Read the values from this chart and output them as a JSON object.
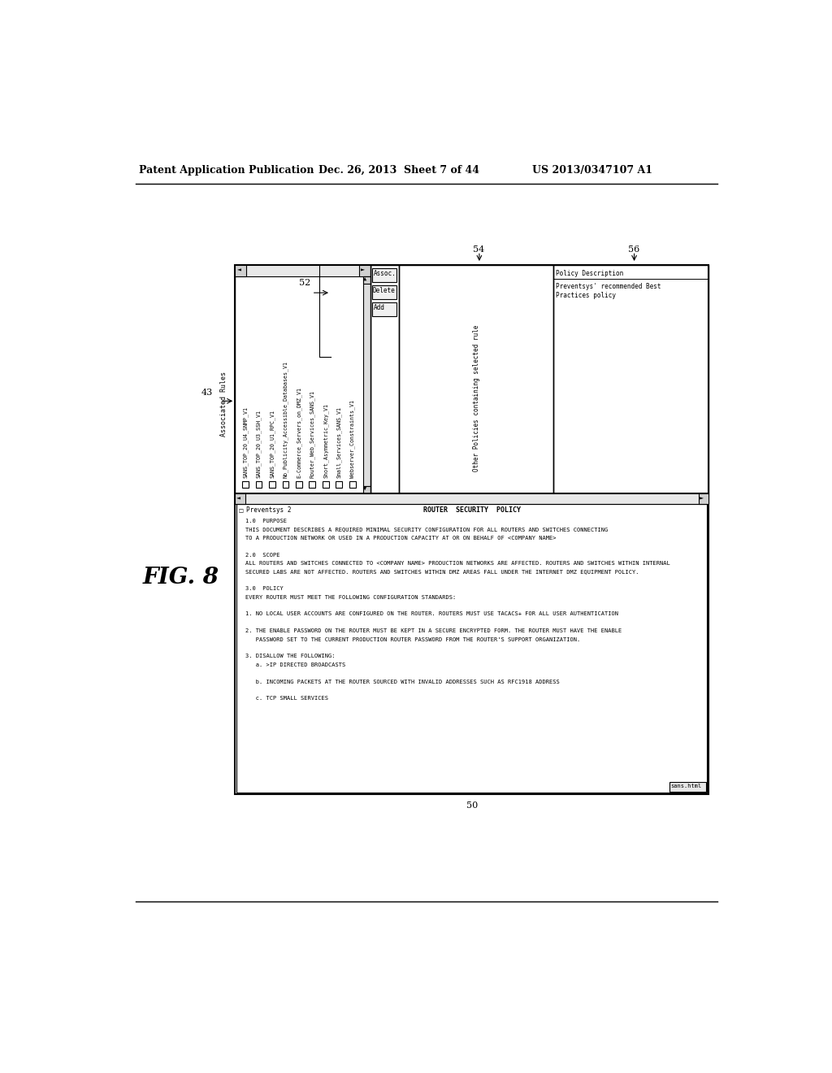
{
  "bg_color": "#ffffff",
  "header_left": "Patent Application Publication",
  "header_mid": "Dec. 26, 2013  Sheet 7 of 44",
  "header_right": "US 2013/0347107 A1",
  "fig_label": "FIG. 8",
  "label_52": "52",
  "label_43": "43",
  "label_50": "50",
  "label_54": "54",
  "label_56": "56",
  "associated_rules_label": "Associated Rules",
  "rules_list": [
    "SANS_TOP_20_U4_SNMP_V1",
    "SANS_TOP_20_U3_SSH_V1",
    "SANS_TOP_20_U1_RPC_V1",
    "No_Publicity_Accessible_Databases_V1",
    "E-Commerce_Servers_on_DMZ_V1",
    "Router_Web_Services_SANS_V1",
    "Short_Asymmetric_Key_V1",
    "Small_Services_SANS_V1",
    "Webserver_Constraints_V1"
  ],
  "buttons": [
    "Add",
    "Delete",
    "Assoc."
  ],
  "other_policies_label": "Other Policies containing selected rule",
  "policy_desc_label": "Policy Description",
  "policy_desc_text1": "Preventsys' recommended Best",
  "policy_desc_text2": "Practices policy",
  "preventsys_label": "Preventsys 2",
  "content_title": "ROUTER  SECURITY  POLICY",
  "content_lines": [
    "1.0  PURPOSE",
    "THIS DOCUMENT DESCRIBES A REQUIRED MINIMAL SECURITY CONFIGURATION FOR ALL ROUTERS AND SWITCHES CONNECTING",
    "TO A PRODUCTION NETWORK OR USED IN A PRODUCTION CAPACITY AT OR ON BEHALF OF <COMPANY NAME>",
    "",
    "2.0  SCOPE",
    "ALL ROUTERS AND SWITCHES CONNECTED TO <COMPANY NAME> PRODUCTION NETWORKS ARE AFFECTED. ROUTERS AND SWITCHES WITHIN INTERNAL",
    "SECURED LABS ARE NOT AFFECTED. ROUTERS AND SWITCHES WITHIN DMZ AREAS FALL UNDER THE INTERNET DMZ EQUIPMENT POLICY.",
    "",
    "3.0  POLICY",
    "EVERY ROUTER MUST MEET THE FOLLOWING CONFIGURATION STANDARDS:",
    "",
    "1. NO LOCAL USER ACCOUNTS ARE CONFIGURED ON THE ROUTER. ROUTERS MUST USE TACACS+ FOR ALL USER AUTHENTICATION",
    "",
    "2. THE ENABLE PASSWORD ON THE ROUTER MUST BE KEPT IN A SECURE ENCRYPTED FORM. THE ROUTER MUST HAVE THE ENABLE",
    "   PASSWORD SET TO THE CURRENT PRODUCTION ROUTER PASSWORD FROM THE ROUTER'S SUPPORT ORGANIZATION.",
    "",
    "3. DISALLOW THE FOLLOWING:",
    "   a. >IP DIRECTED BROADCASTS",
    "",
    "   b. INCOMING PACKETS AT THE ROUTER SOURCED WITH INVALID ADDRESSES SUCH AS RFC1918 ADDRESS",
    "",
    "   c. TCP SMALL SERVICES"
  ],
  "sans_html_label": "sans.html"
}
